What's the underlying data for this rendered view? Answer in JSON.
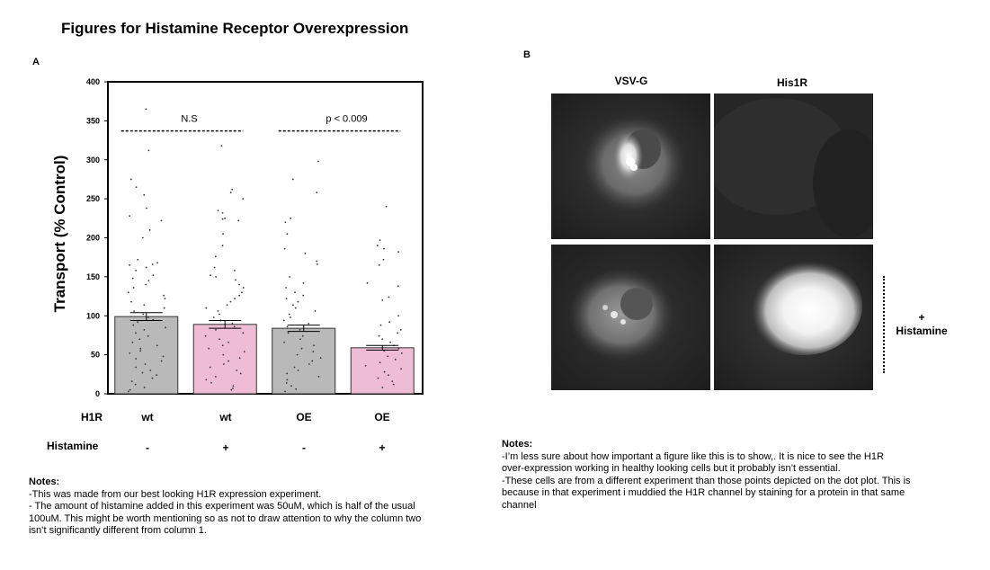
{
  "page_title": "Figures for Histamine Receptor Overexpression",
  "panel_a": {
    "label": "A"
  },
  "panel_b": {
    "label": "B",
    "column_headers": [
      "VSV-G",
      "His1R"
    ],
    "side_label_top": "+",
    "side_label_bottom": "Histamine"
  },
  "row_labels": {
    "h1r": "H1R",
    "histamine": "Histamine"
  },
  "colors": {
    "gray_bar": "#b9b9b9",
    "pink_bar": "#efbcd5",
    "dot": "#333333"
  },
  "chart_data": {
    "type": "bar",
    "ylabel": "Transport (% Control)",
    "xlabel": "",
    "ylim": [
      0,
      400
    ],
    "yticks": [
      0,
      50,
      100,
      150,
      200,
      250,
      300,
      350,
      400
    ],
    "categories": [
      "wt -",
      "wt +",
      "OE -",
      "OE +"
    ],
    "h1r": [
      "wt",
      "wt",
      "OE",
      "OE"
    ],
    "histamine": [
      "-",
      "+",
      "-",
      "+"
    ],
    "values": [
      99,
      89,
      84,
      59
    ],
    "errors": [
      5,
      5,
      4,
      3
    ],
    "bar_colors": [
      "#b9b9b9",
      "#efbcd5",
      "#b9b9b9",
      "#efbcd5"
    ],
    "comparisons": [
      {
        "label": "N.S",
        "from": 0,
        "to": 1,
        "y": 337
      },
      {
        "label": "p < 0.009",
        "from": 2,
        "to": 3,
        "y": 337
      }
    ],
    "points": [
      [
        365,
        312,
        275,
        265,
        255,
        238,
        228,
        222,
        210,
        200,
        172,
        168,
        166,
        165,
        162,
        158,
        152,
        148,
        145,
        140,
        136,
        130,
        126,
        122,
        118,
        114,
        110,
        106,
        102,
        98,
        95,
        92,
        88,
        85,
        82,
        78,
        74,
        70,
        66,
        62,
        58,
        55,
        52,
        48,
        45,
        42,
        38,
        34,
        30,
        27,
        24,
        20,
        16,
        12,
        8,
        5,
        3
      ],
      [
        318,
        262,
        258,
        250,
        235,
        232,
        225,
        224,
        222,
        205,
        190,
        176,
        162,
        158,
        152,
        150,
        146,
        140,
        136,
        130,
        126,
        122,
        118,
        114,
        110,
        106,
        102,
        98,
        94,
        90,
        86,
        82,
        78,
        74,
        70,
        66,
        62,
        58,
        54,
        50,
        46,
        42,
        38,
        34,
        30,
        26,
        22,
        18,
        14,
        10,
        7,
        5
      ],
      [
        298,
        275,
        258,
        225,
        220,
        205,
        186,
        180,
        170,
        166,
        150,
        142,
        136,
        130,
        126,
        122,
        118,
        114,
        110,
        106,
        102,
        98,
        94,
        90,
        86,
        82,
        78,
        74,
        70,
        66,
        62,
        58,
        54,
        50,
        46,
        42,
        38,
        34,
        30,
        26,
        22,
        18,
        14,
        10,
        6,
        3
      ],
      [
        240,
        197,
        190,
        186,
        182,
        172,
        165,
        142,
        138,
        124,
        120,
        100,
        92,
        88,
        82,
        78,
        74,
        70,
        66,
        62,
        58,
        55,
        52,
        48,
        44,
        40,
        36,
        32,
        28,
        24,
        20,
        16,
        12,
        8
      ]
    ]
  },
  "notes_a": {
    "heading": "Notes:",
    "lines": [
      "-This was made from our best looking H1R expression experiment.",
      "- The amount of histamine added in this experiment was 50uM, which is half of the usual",
      "100uM. This might be worth mentioning so as not to draw attention to why the column two",
      " isn’t significantly different from column 1."
    ]
  },
  "notes_b": {
    "heading": "Notes:",
    "lines": [
      "-I’m less sure about how important a figure like this is to show,. It is nice to see the H1R",
      "over-expression working in healthy looking cells but it probably isn’t essential.",
      "-These cells are from a different experiment than those points depicted on the dot plot. This is",
      "because in that experiment i muddied the H1R channel by staining for a protein in that same",
      " channel"
    ]
  }
}
